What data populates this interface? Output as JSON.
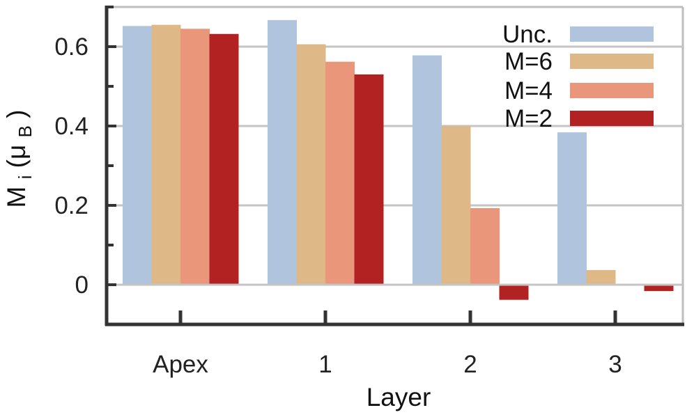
{
  "chart_data": {
    "type": "bar",
    "categories": [
      "Apex",
      "1",
      "2",
      "3"
    ],
    "series": [
      {
        "name": "Unc.",
        "color": "#b0c4de",
        "values": [
          0.652,
          0.667,
          0.578,
          0.384
        ]
      },
      {
        "name": "M=6",
        "color": "#deb887",
        "values": [
          0.655,
          0.606,
          0.4,
          0.037
        ]
      },
      {
        "name": "M=4",
        "color": "#e9967a",
        "values": [
          0.645,
          0.562,
          0.193,
          0.002
        ]
      },
      {
        "name": "M=2",
        "color": "#b22222",
        "values": [
          0.632,
          0.53,
          -0.038,
          -0.016
        ]
      }
    ],
    "xlabel": "Layer",
    "ylabel_main": "M",
    "ylabel_sub": "i",
    "ylabel_unit_open": " (μ",
    "ylabel_unit_sub": "B",
    "ylabel_unit_close": ")",
    "ylim": [
      -0.1,
      0.7
    ],
    "yticks": [
      0,
      0.2,
      0.4,
      0.6
    ],
    "ytick_labels": [
      "0",
      "0.2",
      "0.4",
      "0.6"
    ],
    "grid": "horizontal",
    "legend_position": "top-right"
  }
}
